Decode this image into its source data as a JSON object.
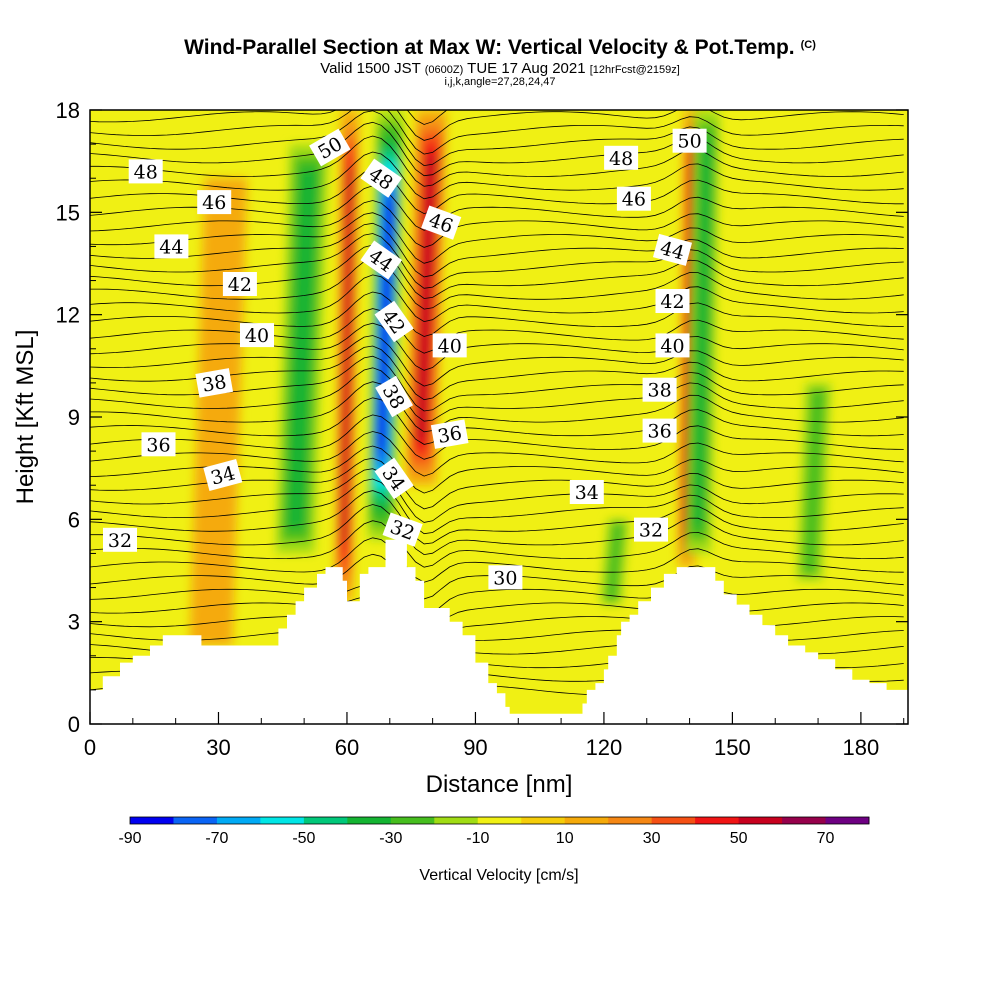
{
  "header": {
    "title": "Wind-Parallel Section at Max W: Vertical Velocity & Pot.Temp.",
    "copyright": "(C)",
    "valid_prefix": "Valid 1500 JST",
    "valid_utc": "(0600Z)",
    "valid_date": "TUE 17 Aug 2021",
    "forecast": "[12hrFcst@2159z]",
    "section_indices": "i,j,k,angle=27,28,24,47"
  },
  "chart_data": {
    "type": "heatmap",
    "xlabel": "Distance [nm]",
    "ylabel": "Height [Kft MSL]",
    "xlim": [
      0,
      191
    ],
    "ylim": [
      0,
      18
    ],
    "x_ticks": [
      "0",
      "30",
      "60",
      "90",
      "120",
      "150",
      "180"
    ],
    "y_ticks": [
      "0",
      "3",
      "6",
      "9",
      "12",
      "15",
      "18"
    ],
    "grid": false,
    "terrain_kft": [
      [
        0,
        1.0
      ],
      [
        3,
        1.4
      ],
      [
        7,
        1.8
      ],
      [
        10,
        2.0
      ],
      [
        14,
        2.3
      ],
      [
        17,
        2.6
      ],
      [
        20,
        2.6
      ],
      [
        26,
        2.3
      ],
      [
        43,
        2.3
      ],
      [
        44,
        2.8
      ],
      [
        46,
        3.2
      ],
      [
        48,
        3.6
      ],
      [
        50,
        4.0
      ],
      [
        53,
        4.4
      ],
      [
        55,
        4.6
      ],
      [
        58,
        4.6
      ],
      [
        59,
        4.2
      ],
      [
        60,
        3.6
      ],
      [
        62,
        3.6
      ],
      [
        63,
        4.4
      ],
      [
        65,
        4.6
      ],
      [
        68,
        4.6
      ],
      [
        69,
        5.4
      ],
      [
        72,
        5.4
      ],
      [
        74,
        4.6
      ],
      [
        76,
        4.2
      ],
      [
        78,
        3.4
      ],
      [
        82,
        3.4
      ],
      [
        84,
        3.0
      ],
      [
        87,
        2.6
      ],
      [
        90,
        1.8
      ],
      [
        93,
        1.2
      ],
      [
        95,
        0.9
      ],
      [
        97,
        0.5
      ],
      [
        98,
        0.3
      ],
      [
        113,
        0.3
      ],
      [
        115,
        0.6
      ],
      [
        116,
        1.0
      ],
      [
        118,
        1.2
      ],
      [
        120,
        1.6
      ],
      [
        121,
        2.0
      ],
      [
        123,
        2.6
      ],
      [
        124,
        3.0
      ],
      [
        126,
        3.2
      ],
      [
        128,
        3.6
      ],
      [
        131,
        4.0
      ],
      [
        134,
        4.4
      ],
      [
        137,
        4.6
      ],
      [
        144,
        4.6
      ],
      [
        146,
        4.2
      ],
      [
        148,
        3.8
      ],
      [
        151,
        3.5
      ],
      [
        154,
        3.2
      ],
      [
        157,
        2.9
      ],
      [
        160,
        2.6
      ],
      [
        163,
        2.3
      ],
      [
        167,
        2.1
      ],
      [
        170,
        1.9
      ],
      [
        174,
        1.6
      ],
      [
        178,
        1.3
      ],
      [
        182,
        1.2
      ],
      [
        186,
        1.0
      ],
      [
        191,
        0.7
      ]
    ],
    "vertical_velocity_features": [
      {
        "kind": "updraft",
        "x": [
          58,
          62
        ],
        "z": [
          3.6,
          18
        ],
        "peak_cm_s": 50
      },
      {
        "kind": "downdraft",
        "x": [
          66,
          72
        ],
        "z": [
          5.4,
          18
        ],
        "peak_cm_s": -90
      },
      {
        "kind": "updraft",
        "x": [
          75,
          82
        ],
        "z": [
          7,
          18
        ],
        "peak_cm_s": 50
      },
      {
        "kind": "downdraft",
        "x": [
          45,
          54
        ],
        "z": [
          5,
          17
        ],
        "peak_cm_s": -30
      },
      {
        "kind": "updraft",
        "x": [
          138,
          142
        ],
        "z": [
          4.6,
          18
        ],
        "peak_cm_s": 40
      },
      {
        "kind": "downdraft",
        "x": [
          140,
          146
        ],
        "z": [
          5,
          18
        ],
        "peak_cm_s": -30
      },
      {
        "kind": "downdraft",
        "x": [
          166,
          172
        ],
        "z": [
          4.2,
          10
        ],
        "peak_cm_s": -20
      },
      {
        "kind": "downdraft",
        "x": [
          120,
          125
        ],
        "z": [
          3.5,
          6
        ],
        "peak_cm_s": -20
      },
      {
        "kind": "updraft",
        "x": [
          25,
          35
        ],
        "z": [
          2.3,
          16
        ],
        "peak_cm_s": 15
      }
    ],
    "theta_contour_labels": [
      {
        "text": "48",
        "x": 13,
        "z": 16.2,
        "angle": 0
      },
      {
        "text": "46",
        "x": 29,
        "z": 15.3,
        "angle": 0
      },
      {
        "text": "44",
        "x": 19,
        "z": 14.0,
        "angle": 0
      },
      {
        "text": "42",
        "x": 35,
        "z": 12.9,
        "angle": 0
      },
      {
        "text": "40",
        "x": 39,
        "z": 11.4,
        "angle": 0
      },
      {
        "text": "38",
        "x": 29,
        "z": 10.0,
        "angle": -10
      },
      {
        "text": "36",
        "x": 16,
        "z": 8.2,
        "angle": 0
      },
      {
        "text": "34",
        "x": 31,
        "z": 7.3,
        "angle": -15
      },
      {
        "text": "32",
        "x": 7,
        "z": 5.4,
        "angle": 0
      },
      {
        "text": "50",
        "x": 56,
        "z": 16.9,
        "angle": -30
      },
      {
        "text": "48",
        "x": 68,
        "z": 16.0,
        "angle": 35
      },
      {
        "text": "46",
        "x": 82,
        "z": 14.7,
        "angle": 20
      },
      {
        "text": "44",
        "x": 68,
        "z": 13.6,
        "angle": 35
      },
      {
        "text": "42",
        "x": 71,
        "z": 11.8,
        "angle": 55
      },
      {
        "text": "40",
        "x": 84,
        "z": 11.1,
        "angle": 0
      },
      {
        "text": "38",
        "x": 71,
        "z": 9.6,
        "angle": 60
      },
      {
        "text": "36",
        "x": 84,
        "z": 8.5,
        "angle": -10
      },
      {
        "text": "34",
        "x": 71,
        "z": 7.2,
        "angle": 55
      },
      {
        "text": "32",
        "x": 73,
        "z": 5.7,
        "angle": 20
      },
      {
        "text": "30",
        "x": 97,
        "z": 4.3,
        "angle": 0
      },
      {
        "text": "34",
        "x": 116,
        "z": 6.8,
        "angle": 0
      },
      {
        "text": "32",
        "x": 131,
        "z": 5.7,
        "angle": 0
      },
      {
        "text": "48",
        "x": 124,
        "z": 16.6,
        "angle": 0
      },
      {
        "text": "50",
        "x": 140,
        "z": 17.1,
        "angle": 0
      },
      {
        "text": "46",
        "x": 127,
        "z": 15.4,
        "angle": 0
      },
      {
        "text": "44",
        "x": 136,
        "z": 13.9,
        "angle": 15
      },
      {
        "text": "42",
        "x": 136,
        "z": 12.4,
        "angle": 0
      },
      {
        "text": "40",
        "x": 136,
        "z": 11.1,
        "angle": 0
      },
      {
        "text": "38",
        "x": 133,
        "z": 9.8,
        "angle": 0
      },
      {
        "text": "36",
        "x": 133,
        "z": 8.6,
        "angle": 0
      }
    ],
    "colorbar": {
      "label": "Vertical Velocity [cm/s]",
      "tick_labels": [
        "-90",
        "-70",
        "-50",
        "-30",
        "-10",
        "10",
        "30",
        "50",
        "70"
      ],
      "colors": [
        "#0000f0",
        "#0a64f5",
        "#00aaf5",
        "#00e6e6",
        "#00c87a",
        "#14b432",
        "#46be1e",
        "#a0dc14",
        "#f0f014",
        "#f5cd0a",
        "#f5aa0a",
        "#f58714",
        "#f55014",
        "#f01414",
        "#c8001e",
        "#96004b",
        "#6e0082"
      ]
    }
  }
}
